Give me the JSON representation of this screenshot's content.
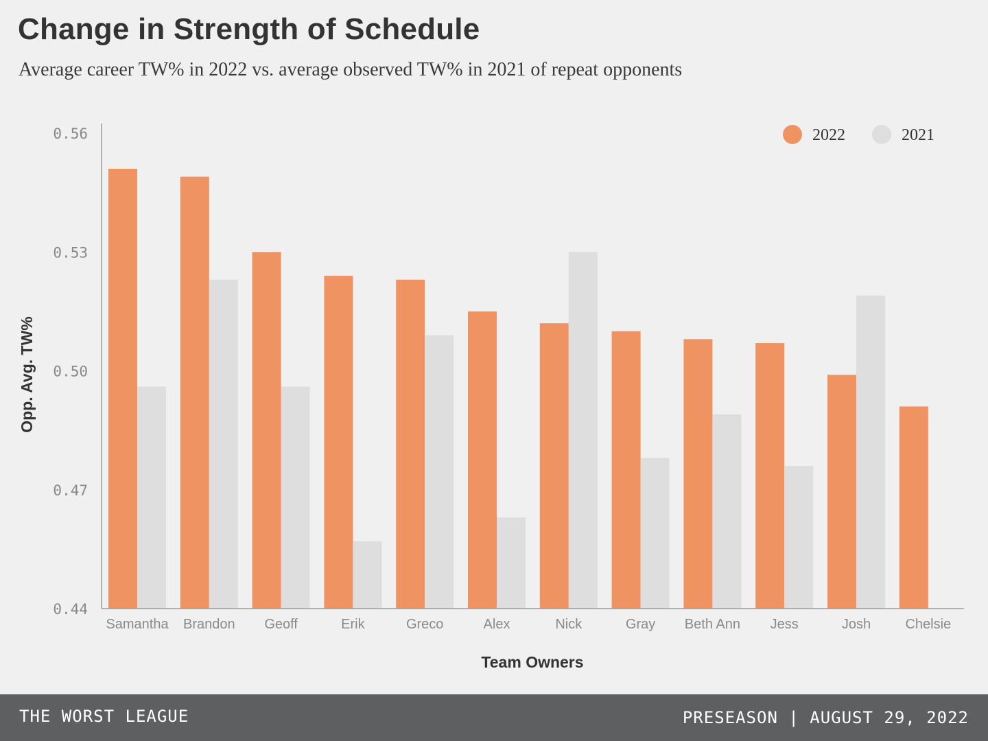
{
  "header": {
    "title": "Change in Strength of Schedule",
    "subtitle": "Average career TW% in 2022 vs. average observed TW% in 2021 of repeat opponents"
  },
  "footer": {
    "league": "THE WORST LEAGUE",
    "date": "PRESEASON | AUGUST 29, 2022"
  },
  "colors": {
    "series_2022": "#ef9363",
    "series_2021": "#dedede",
    "axis": "#9a9a9a",
    "tick_text": "#888888",
    "category_text": "#8a8a8a",
    "label_text": "#333333"
  },
  "chart_data": {
    "type": "bar",
    "title": "Change in Strength of Schedule",
    "subtitle": "Average career TW% in 2022 vs. average observed TW% in 2021 of repeat opponents",
    "xlabel": "Team Owners",
    "ylabel": "Opp. Avg. TW%",
    "ylim": [
      0.44,
      0.56
    ],
    "yticks": [
      "0.56",
      "0.53",
      "0.50",
      "0.47",
      "0.44"
    ],
    "grid": false,
    "legend_position": "top-right",
    "categories": [
      "Samantha",
      "Brandon",
      "Geoff",
      "Erik",
      "Greco",
      "Alex",
      "Nick",
      "Gray",
      "Beth Ann",
      "Jess",
      "Josh",
      "Chelsie"
    ],
    "series": [
      {
        "name": "2022",
        "values": [
          0.551,
          0.549,
          0.53,
          0.524,
          0.523,
          0.515,
          0.512,
          0.51,
          0.508,
          0.507,
          0.499,
          0.491
        ]
      },
      {
        "name": "2021",
        "values": [
          0.496,
          0.523,
          0.496,
          0.457,
          0.509,
          0.463,
          0.53,
          0.478,
          0.489,
          0.476,
          0.519,
          null
        ]
      }
    ]
  }
}
